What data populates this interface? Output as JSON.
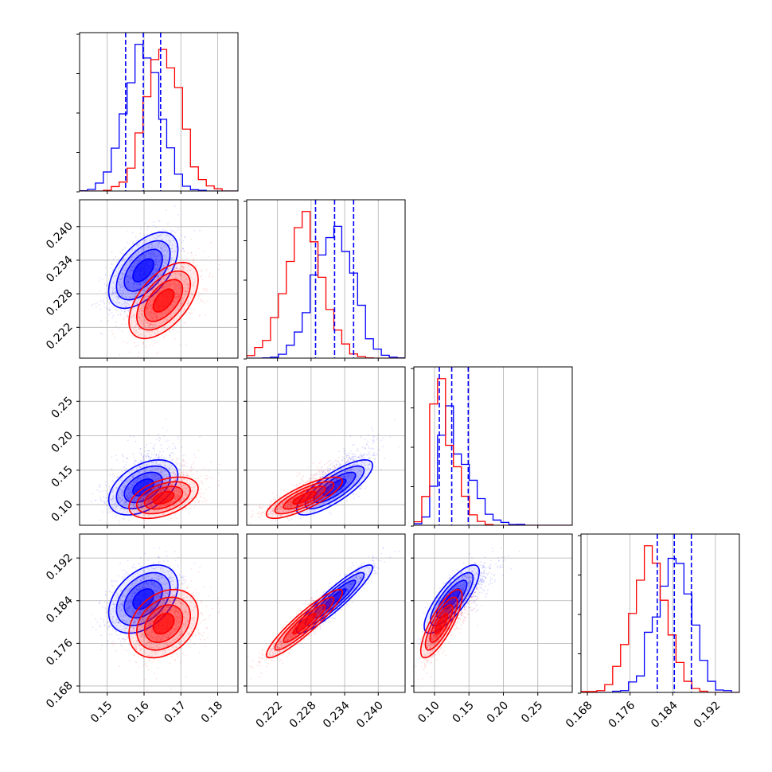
{
  "chart_data": {
    "type": "corner",
    "grid": true,
    "series": [
      {
        "name": "",
        "color": "#0000ff",
        "mean": [
          0.1598,
          0.2322,
          0.125,
          0.1843
        ],
        "sd": [
          0.0047,
          0.0034,
          0.02,
          0.0032
        ],
        "corr": {
          "0-1": 0.55,
          "0-2": 0.45,
          "0-3": 0.4,
          "1-2": 0.8,
          "1-3": 0.92,
          "2-3": 0.8
        }
      },
      {
        "name": "",
        "color": "#ff0000",
        "mean": [
          0.1653,
          0.2268,
          0.11,
          0.1797
        ],
        "sd": [
          0.0047,
          0.0034,
          0.015,
          0.0032
        ],
        "corr": {
          "0-1": 0.55,
          "0-2": 0.45,
          "0-3": 0.3,
          "1-2": 0.8,
          "1-3": 0.92,
          "2-3": 0.8
        }
      }
    ],
    "quantiles": [
      [
        0.155,
        0.1598,
        0.1645
      ],
      [
        0.2288,
        0.2322,
        0.2356
      ],
      [
        0.107,
        0.125,
        0.149
      ],
      [
        0.1811,
        0.1843,
        0.1875
      ]
    ],
    "quantile_color": "#0000ff",
    "parameters": [
      {
        "range": [
          0.1425,
          0.1855
        ],
        "ticks": [
          0.15,
          0.16,
          0.17,
          0.18
        ],
        "tick_labels": [
          "0.15",
          "0.16",
          "0.17",
          "0.18"
        ]
      },
      {
        "range": [
          0.2165,
          0.2448
        ],
        "ticks": [
          0.222,
          0.228,
          0.234,
          0.24
        ],
        "tick_labels": [
          "0.222",
          "0.228",
          "0.234",
          "0.240"
        ]
      },
      {
        "range": [
          0.07,
          0.3
        ],
        "ticks": [
          0.1,
          0.15,
          0.2,
          0.25
        ],
        "tick_labels": [
          "0.10",
          "0.15",
          "0.20",
          "0.25"
        ]
      },
      {
        "range": [
          0.1668,
          0.1965
        ],
        "ticks": [
          0.168,
          0.176,
          0.184,
          0.192
        ],
        "tick_labels": [
          "0.168",
          "0.176",
          "0.184",
          "0.192"
        ]
      }
    ]
  }
}
